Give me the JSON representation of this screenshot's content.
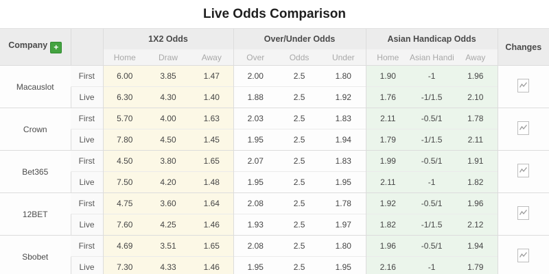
{
  "title": "Live Odds Comparison",
  "header": {
    "company_label": "Company",
    "add_button_label": "+",
    "groups": [
      {
        "label": "1X2 Odds",
        "cols": [
          "Home",
          "Draw",
          "Away"
        ]
      },
      {
        "label": "Over/Under Odds",
        "cols": [
          "Over",
          "Odds",
          "Under"
        ]
      },
      {
        "label": "Asian Handicap Odds",
        "cols": [
          "Home",
          "Asian Handicap",
          "Away"
        ]
      }
    ],
    "changes_label": "Changes"
  },
  "companies": [
    {
      "name": "Macauslot",
      "rows": [
        {
          "phase": "First",
          "x2": [
            "6.00",
            "3.85",
            "1.47"
          ],
          "ou": [
            "2.00",
            "2.5",
            "1.80"
          ],
          "ah": [
            "1.90",
            "-1",
            "1.96"
          ]
        },
        {
          "phase": "Live",
          "x2": [
            "6.30",
            "4.30",
            "1.40"
          ],
          "ou": [
            "1.88",
            "2.5",
            "1.92"
          ],
          "ah": [
            "1.76",
            "-1/1.5",
            "2.10"
          ]
        }
      ]
    },
    {
      "name": "Crown",
      "rows": [
        {
          "phase": "First",
          "x2": [
            "5.70",
            "4.00",
            "1.63"
          ],
          "ou": [
            "2.03",
            "2.5",
            "1.83"
          ],
          "ah": [
            "2.11",
            "-0.5/1",
            "1.78"
          ]
        },
        {
          "phase": "Live",
          "x2": [
            "7.80",
            "4.50",
            "1.45"
          ],
          "ou": [
            "1.95",
            "2.5",
            "1.94"
          ],
          "ah": [
            "1.79",
            "-1/1.5",
            "2.11"
          ]
        }
      ]
    },
    {
      "name": "Bet365",
      "rows": [
        {
          "phase": "First",
          "x2": [
            "4.50",
            "3.80",
            "1.65"
          ],
          "ou": [
            "2.07",
            "2.5",
            "1.83"
          ],
          "ah": [
            "1.99",
            "-0.5/1",
            "1.91"
          ]
        },
        {
          "phase": "Live",
          "x2": [
            "7.50",
            "4.20",
            "1.48"
          ],
          "ou": [
            "1.95",
            "2.5",
            "1.95"
          ],
          "ah": [
            "2.11",
            "-1",
            "1.82"
          ]
        }
      ]
    },
    {
      "name": "12BET",
      "rows": [
        {
          "phase": "First",
          "x2": [
            "4.75",
            "3.60",
            "1.64"
          ],
          "ou": [
            "2.08",
            "2.5",
            "1.78"
          ],
          "ah": [
            "1.92",
            "-0.5/1",
            "1.96"
          ]
        },
        {
          "phase": "Live",
          "x2": [
            "7.60",
            "4.25",
            "1.46"
          ],
          "ou": [
            "1.93",
            "2.5",
            "1.97"
          ],
          "ah": [
            "1.82",
            "-1/1.5",
            "2.12"
          ]
        }
      ]
    },
    {
      "name": "Sbobet",
      "rows": [
        {
          "phase": "First",
          "x2": [
            "4.69",
            "3.51",
            "1.65"
          ],
          "ou": [
            "2.08",
            "2.5",
            "1.80"
          ],
          "ah": [
            "1.96",
            "-0.5/1",
            "1.94"
          ]
        },
        {
          "phase": "Live",
          "x2": [
            "7.30",
            "4.33",
            "1.46"
          ],
          "ou": [
            "1.95",
            "2.5",
            "1.95"
          ],
          "ah": [
            "2.16",
            "-1",
            "1.79"
          ]
        }
      ]
    }
  ],
  "colors": {
    "accent_green": "#44a340",
    "cream_cell": "#fcf8e6",
    "handicap_cell": "#ebf5eb",
    "header_bg": "#ececec",
    "subheader_bg": "#f4f4f4"
  }
}
